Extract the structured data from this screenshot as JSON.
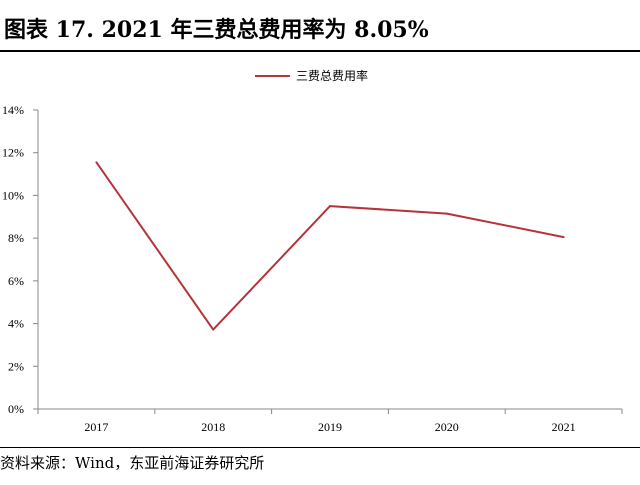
{
  "header": {
    "title": "图表 17. 2021 年三费总费用率为 8.05%"
  },
  "footer": {
    "source": "资料来源：Wind，东亚前海证券研究所"
  },
  "colors": {
    "series": "#b5333a",
    "axis": "#888888"
  },
  "chart_data": {
    "type": "line",
    "title": "",
    "xlabel": "",
    "ylabel": "",
    "categories": [
      "2017",
      "2018",
      "2019",
      "2020",
      "2021"
    ],
    "series": [
      {
        "name": "三费总费用率",
        "values": [
          11.55,
          3.72,
          9.5,
          9.15,
          8.05
        ]
      }
    ],
    "ylim": [
      0,
      14
    ],
    "yticks": [
      "0%",
      "2%",
      "4%",
      "6%",
      "8%",
      "10%",
      "12%",
      "14%"
    ],
    "legend_position": "top-center",
    "grid": false
  }
}
